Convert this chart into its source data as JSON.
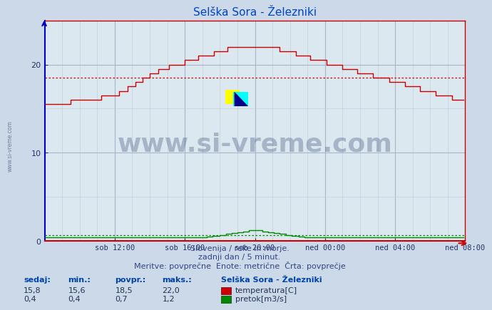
{
  "title": "Selška Sora - Železniki",
  "bg_color": "#ccd9e8",
  "plot_bg_color": "#dce8f0",
  "grid_color_minor": "#bfc9d9",
  "grid_color_major": "#aab4c8",
  "temp_color": "#cc0000",
  "flow_color": "#008800",
  "avg_temp_color": "#cc0000",
  "avg_flow_color": "#008800",
  "avg_temp_value": 18.5,
  "avg_flow_value": 0.7,
  "ylim_max": 25,
  "n_points": 288,
  "x_tick_positions": [
    48,
    96,
    144,
    192,
    240,
    288
  ],
  "x_tick_labels": [
    "sob 12:00",
    "sob 16:00",
    "sob 20:00",
    "ned 00:00",
    "ned 04:00",
    "ned 08:00"
  ],
  "y_ticks": [
    0,
    10,
    20
  ],
  "watermark_text": "www.si-vreme.com",
  "watermark_color": "#1a3060",
  "watermark_alpha": 0.28,
  "watermark_fontsize": 26,
  "subtitle1": "Slovenija / reke in morje.",
  "subtitle2": "zadnji dan / 5 minut.",
  "subtitle3": "Meritve: povprečne  Enote: metrične  Črta: povprečje",
  "legend_title": "Selška Sora - Železniki",
  "stat_headers": [
    "sedaj:",
    "min.:",
    "povpr.:",
    "maks.:"
  ],
  "temp_stats": [
    "15,8",
    "15,6",
    "18,5",
    "22,0"
  ],
  "flow_stats": [
    "0,4",
    "0,4",
    "0,7",
    "1,2"
  ],
  "temp_label": "temperatura[C]",
  "flow_label": "pretok[m3/s]",
  "left_spine_color": "#0000cc",
  "right_spine_color": "#cc0000",
  "top_spine_color": "#cc0000",
  "bottom_spine_color": "#cc0000",
  "tick_label_color": "#223366",
  "title_color": "#0044cc",
  "subtitle_color": "#334488",
  "stat_header_color": "#0044aa",
  "stat_value_color": "#223355"
}
